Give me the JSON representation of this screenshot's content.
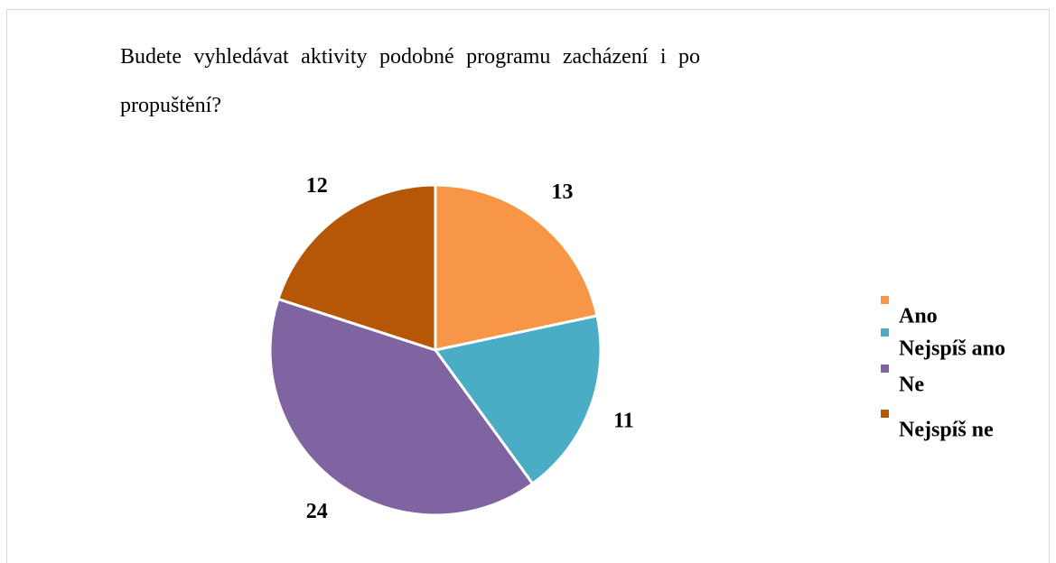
{
  "chart_data": {
    "type": "pie",
    "title": "Budete vyhledávat aktivity podobné programu zacházení i po propuštění?",
    "categories": [
      "Ano",
      "Nejspíš ano",
      "Ne",
      "Nejspíš ne"
    ],
    "values": [
      13,
      11,
      24,
      12
    ],
    "colors": [
      "#f79646",
      "#4bacc6",
      "#8064a2",
      "#b65708"
    ],
    "legend": "right"
  }
}
